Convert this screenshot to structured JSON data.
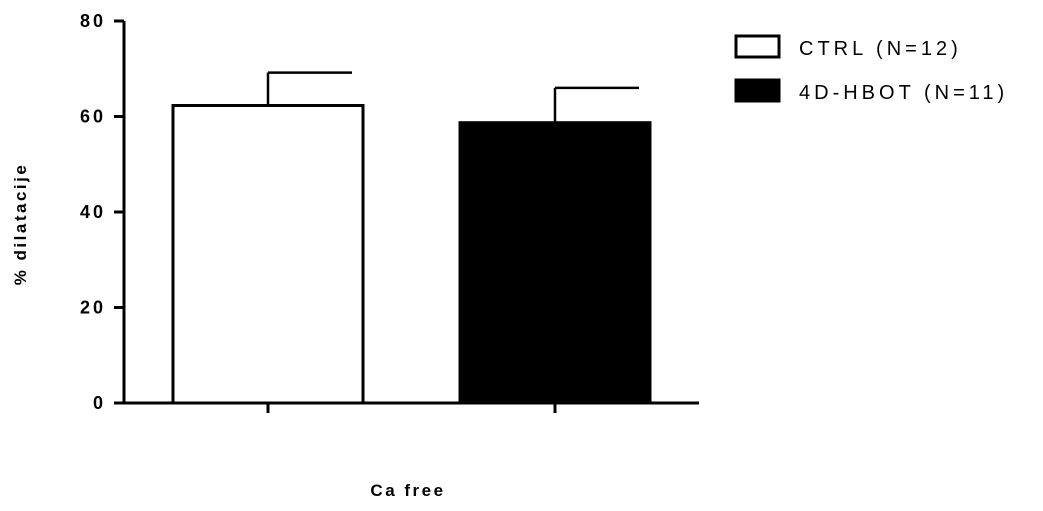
{
  "chart_data": {
    "type": "bar",
    "xlabel": "Ca free",
    "ylabel": "% dilatacije",
    "ylim": [
      0,
      80
    ],
    "yticks": [
      0,
      20,
      40,
      60,
      80
    ],
    "grid": false,
    "legend_position": "top-right",
    "series": [
      {
        "name": "CTRL (N=12)",
        "value": 62.3,
        "error": 6.9,
        "fill": "#ffffff",
        "stroke": "#000000"
      },
      {
        "name": "4D-HBOT (N=11)",
        "value": 58.7,
        "error": 7.3,
        "fill": "#000000",
        "stroke": "#000000"
      }
    ]
  }
}
